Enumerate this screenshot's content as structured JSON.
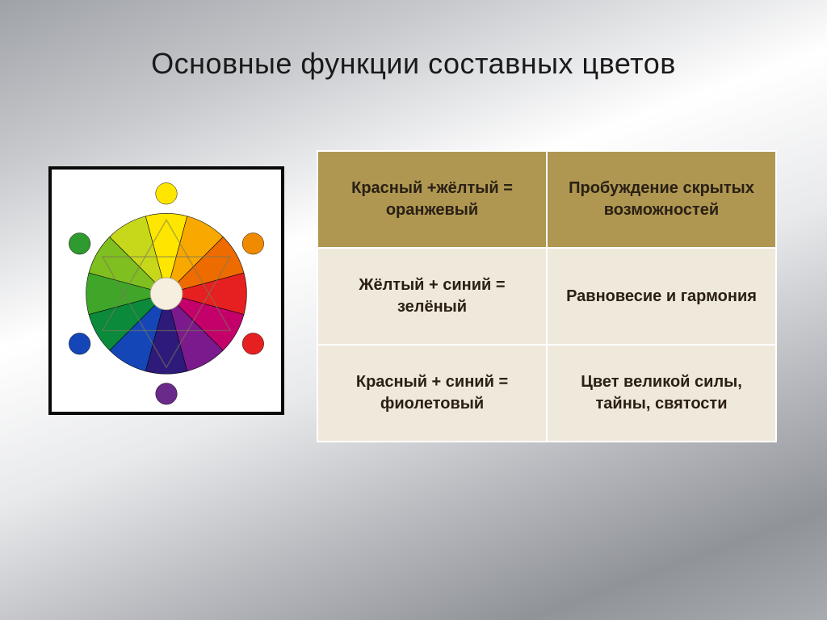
{
  "title": "Основные функции составных цветов",
  "table": {
    "rows": [
      {
        "formula": "Красный +жёлтый = оранжевый",
        "meaning": "Пробуждение скрытых возможностей",
        "bg": "#af9752"
      },
      {
        "formula": "Жёлтый + синий = зелёный",
        "meaning": "Равновесие и гармония",
        "bg": "#efe9db"
      },
      {
        "formula": "Красный + синий = фиолетовый",
        "meaning": "Цвет великой силы, тайны, святости",
        "bg": "#efe9db"
      }
    ],
    "text_color": "#2a2014",
    "border_color": "#ffffff",
    "font_size_pt": 15,
    "font_weight": "bold"
  },
  "color_wheel": {
    "type": "pie",
    "background_color": "#ffffff",
    "border_color": "#0a0a0a",
    "segments": [
      {
        "color": "#ffe600"
      },
      {
        "color": "#f9a800"
      },
      {
        "color": "#ee6b00"
      },
      {
        "color": "#e62020"
      },
      {
        "color": "#c4006a"
      },
      {
        "color": "#7a1a8c"
      },
      {
        "color": "#2d1a7a"
      },
      {
        "color": "#1446b8"
      },
      {
        "color": "#0a8a3a"
      },
      {
        "color": "#3fa62a"
      },
      {
        "color": "#7fbf1f"
      },
      {
        "color": "#c7d81a"
      }
    ],
    "outer_dots": [
      {
        "angle_deg": -90,
        "color": "#ffe600"
      },
      {
        "angle_deg": -30,
        "color": "#f08a00"
      },
      {
        "angle_deg": 30,
        "color": "#e62020"
      },
      {
        "angle_deg": 90,
        "color": "#6a2a8a"
      },
      {
        "angle_deg": 150,
        "color": "#1446b8"
      },
      {
        "angle_deg": 210,
        "color": "#2f9a2f"
      }
    ],
    "inner_radius_ratio": 0.2,
    "inner_fill": "#f5efe0",
    "triangle_color": "#7a7a5a"
  }
}
